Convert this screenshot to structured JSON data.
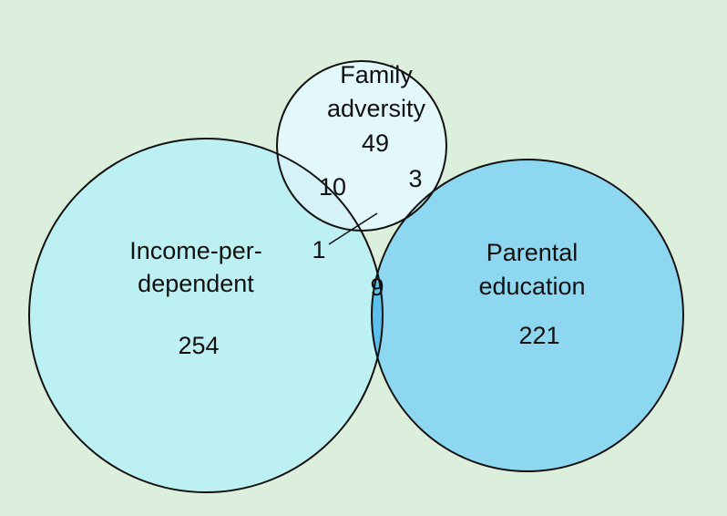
{
  "colors": {
    "background": "#dcefdc",
    "income_fill": "#bdf0f2",
    "parental_fill": "#8ed7f1",
    "family_fill": "#e2f8fb",
    "family_income_overlap": "#d4f2f7",
    "family_parental_overlap": "#b8e7f5",
    "income_parental_overlap": "#5bc1ea",
    "stroke": "#111111"
  },
  "sets": {
    "family": {
      "line1": "Family",
      "line2": "adversity",
      "only": "49"
    },
    "income": {
      "line1": "Income-per-",
      "line2": "dependent",
      "only": "254"
    },
    "parental": {
      "line1": "Parental",
      "line2": "education",
      "only": "221"
    }
  },
  "intersections": {
    "family_income": "10",
    "family_parental": "3",
    "all_three": "1",
    "income_parental": "9"
  }
}
